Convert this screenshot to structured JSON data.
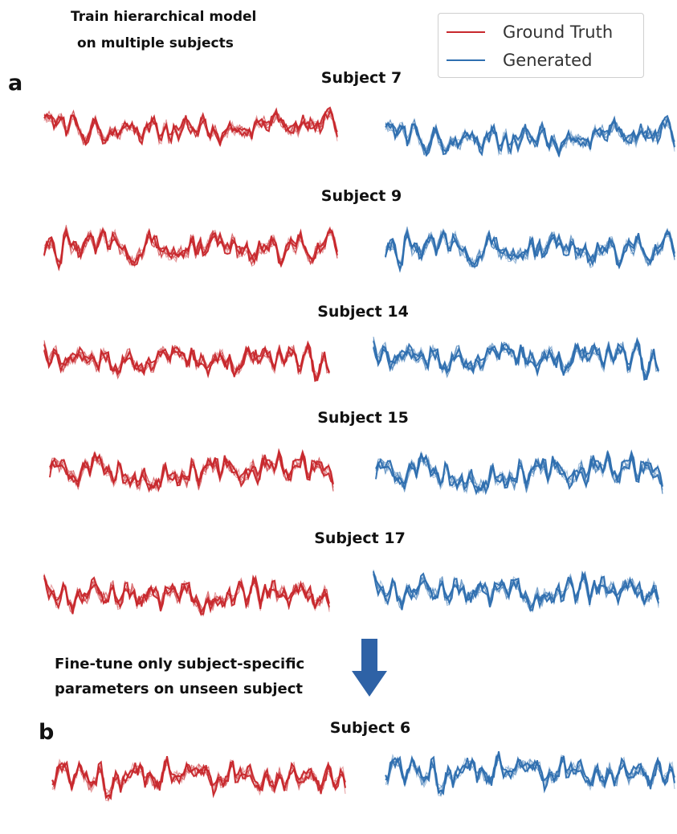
{
  "header": {
    "title_line1": "Train hierarchical model",
    "title_line2": "on multiple subjects"
  },
  "panels": {
    "a": "a",
    "b": "b"
  },
  "legend": {
    "items": [
      {
        "label": "Ground Truth",
        "color": "#c8282d"
      },
      {
        "label": "Generated",
        "color": "#2f6fb0"
      }
    ]
  },
  "transfer": {
    "text_line1": "Fine-tune only subject-specific",
    "text_line2": "parameters on unseen subject",
    "arrow_color": "#2e62a6"
  },
  "chart_data": {
    "type": "line",
    "description_series": [
      "Ground Truth",
      "Generated"
    ],
    "colors": {
      "Ground Truth": "#c8282d",
      "Generated": "#2f6fb0"
    },
    "subjects": [
      {
        "label": "Subject 7",
        "panel": "a"
      },
      {
        "label": "Subject 9",
        "panel": "a"
      },
      {
        "label": "Subject 14",
        "panel": "a"
      },
      {
        "label": "Subject 15",
        "panel": "a"
      },
      {
        "label": "Subject 17",
        "panel": "a"
      },
      {
        "label": "Subject 6",
        "panel": "b"
      }
    ]
  }
}
